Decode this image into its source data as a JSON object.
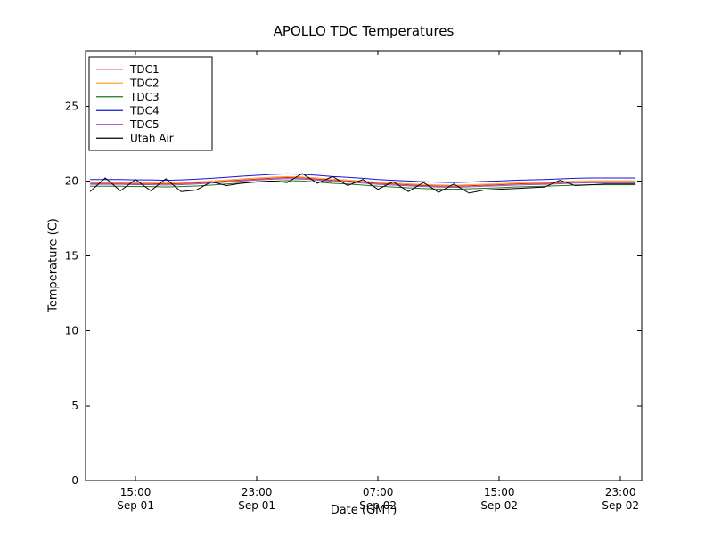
{
  "chart_data": {
    "type": "line",
    "title": "APOLLO TDC Temperatures",
    "xlabel": "Date (GMT)",
    "ylabel": "Temperature (C)",
    "x_unit": "hours since Sep 01 00:00 GMT",
    "xlim": [
      11.7,
      48.4
    ],
    "ylim": [
      0,
      28.7
    ],
    "grid": false,
    "legend_position": "upper left",
    "y_ticks": [
      0,
      5,
      10,
      15,
      20,
      25
    ],
    "x_ticks": [
      {
        "value": 15,
        "time": "15:00",
        "date": "Sep 01"
      },
      {
        "value": 23,
        "time": "23:00",
        "date": "Sep 01"
      },
      {
        "value": 31,
        "time": "07:00",
        "date": "Sep 02"
      },
      {
        "value": 39,
        "time": "15:00",
        "date": "Sep 02"
      },
      {
        "value": 47,
        "time": "23:00",
        "date": "Sep 02"
      }
    ],
    "x": [
      12,
      13,
      14,
      15,
      16,
      17,
      18,
      19,
      20,
      21,
      22,
      23,
      24,
      25,
      26,
      27,
      28,
      29,
      30,
      31,
      32,
      33,
      34,
      35,
      36,
      37,
      38,
      39,
      40,
      41,
      42,
      43,
      44,
      45,
      46,
      47,
      48
    ],
    "series": [
      {
        "name": "TDC1",
        "color": "#dd2222",
        "values": [
          19.85,
          19.85,
          19.85,
          19.83,
          19.83,
          19.8,
          19.83,
          19.87,
          19.93,
          20.0,
          20.07,
          20.13,
          20.19,
          20.23,
          20.2,
          20.13,
          20.05,
          20.0,
          19.93,
          19.85,
          19.8,
          19.75,
          19.7,
          19.67,
          19.65,
          19.68,
          19.72,
          19.75,
          19.8,
          19.83,
          19.85,
          19.89,
          19.93,
          19.95,
          19.95,
          19.95,
          19.95
        ]
      },
      {
        "name": "TDC2",
        "color": "#ffa726",
        "values": [
          19.92,
          19.92,
          19.92,
          19.9,
          19.9,
          19.87,
          19.9,
          19.94,
          20.0,
          20.07,
          20.14,
          20.2,
          20.26,
          20.3,
          20.27,
          20.2,
          20.12,
          20.07,
          20.0,
          19.92,
          19.87,
          19.82,
          19.77,
          19.74,
          19.72,
          19.75,
          19.79,
          19.82,
          19.87,
          19.9,
          19.92,
          19.96,
          20.0,
          20.02,
          20.02,
          20.02,
          20.02
        ]
      },
      {
        "name": "TDC3",
        "color": "#1a7a1a",
        "values": [
          19.65,
          19.65,
          19.65,
          19.63,
          19.63,
          19.6,
          19.63,
          19.67,
          19.73,
          19.8,
          19.87,
          19.93,
          19.99,
          20.03,
          20.0,
          19.93,
          19.85,
          19.8,
          19.73,
          19.65,
          19.6,
          19.55,
          19.5,
          19.47,
          19.45,
          19.48,
          19.52,
          19.55,
          19.6,
          19.63,
          19.65,
          19.69,
          19.73,
          19.75,
          19.75,
          19.75,
          19.75
        ]
      },
      {
        "name": "TDC4",
        "color": "#1414e0",
        "values": [
          20.1,
          20.1,
          20.1,
          20.08,
          20.08,
          20.05,
          20.08,
          20.12,
          20.18,
          20.25,
          20.32,
          20.38,
          20.44,
          20.48,
          20.45,
          20.38,
          20.3,
          20.25,
          20.18,
          20.1,
          20.05,
          20.0,
          19.95,
          19.92,
          19.9,
          19.93,
          19.97,
          20.0,
          20.05,
          20.08,
          20.1,
          20.14,
          20.18,
          20.2,
          20.2,
          20.2,
          20.2
        ]
      },
      {
        "name": "TDC5",
        "color": "#9b4dca",
        "values": [
          19.78,
          19.78,
          19.78,
          19.76,
          19.76,
          19.73,
          19.76,
          19.8,
          19.86,
          19.93,
          20.0,
          20.06,
          20.12,
          20.16,
          20.13,
          20.06,
          19.98,
          19.93,
          19.86,
          19.78,
          19.73,
          19.68,
          19.63,
          19.6,
          19.58,
          19.61,
          19.65,
          19.68,
          19.73,
          19.76,
          19.78,
          19.82,
          19.86,
          19.88,
          19.88,
          19.88,
          19.88
        ]
      },
      {
        "name": "Utah Air",
        "color": "#000000",
        "values": [
          19.3,
          20.2,
          19.35,
          20.1,
          19.35,
          20.15,
          19.3,
          19.4,
          19.95,
          19.7,
          19.85,
          19.95,
          20.0,
          19.9,
          20.5,
          19.85,
          20.3,
          19.7,
          20.1,
          19.45,
          19.95,
          19.3,
          19.9,
          19.25,
          19.8,
          19.2,
          19.4,
          19.45,
          19.5,
          19.55,
          19.6,
          20.05,
          19.7,
          19.75,
          19.8,
          19.8,
          19.8
        ]
      }
    ]
  }
}
